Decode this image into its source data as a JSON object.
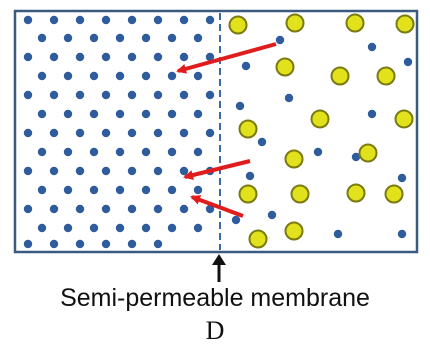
{
  "diagram": {
    "membrane_label": "Semi-permeable membrane",
    "panel_letter": "D"
  },
  "colors": {
    "container_border": "#3a5a80",
    "membrane_line": "#3a6aa8",
    "water_molecule": "#2f5c9c",
    "solute_fill": "#e2e21c",
    "solute_ring": "#7a7a10",
    "flow_arrow": "#e01c1c",
    "pointer_arrow": "#111111"
  },
  "particles": {
    "left_water_count": 96,
    "right_water_count": 16,
    "right_solute_count": 18,
    "flow_arrows": 3
  }
}
